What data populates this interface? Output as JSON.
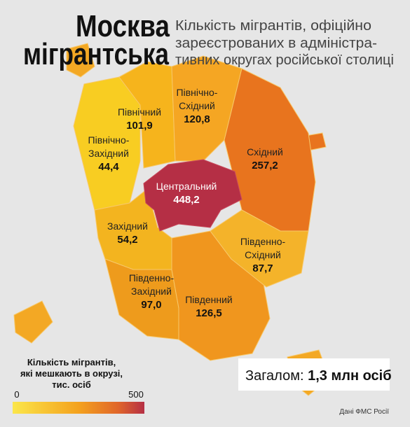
{
  "header": {
    "title": [
      "Москва",
      "мігрантська"
    ],
    "subtitle": [
      "Кількість мігрантів, офіційно",
      "зареєстрованих в адміністра-",
      "тивних округах російської столиці"
    ]
  },
  "districts": [
    {
      "name": [
        "Північний"
      ],
      "value": "101,9"
    },
    {
      "name": [
        "Північно-",
        "Східний"
      ],
      "value": "120,8"
    },
    {
      "name": [
        "Північно-",
        "Західний"
      ],
      "value": "44,4"
    },
    {
      "name": [
        "Східний"
      ],
      "value": "257,2"
    },
    {
      "name": [
        "Центральний"
      ],
      "value": "448,2"
    },
    {
      "name": [
        "Західний"
      ],
      "value": "54,2"
    },
    {
      "name": [
        "Південно-",
        "Східний"
      ],
      "value": "87,7"
    },
    {
      "name": [
        "Південно-",
        "Західний"
      ],
      "value": "97,0"
    },
    {
      "name": [
        "Південний"
      ],
      "value": "126,5"
    }
  ],
  "legend": {
    "title": [
      "Кількість мігрантів,",
      "які мешкають в окрузі,",
      "тис. осіб"
    ],
    "min": "0",
    "max": "500"
  },
  "total": {
    "label": "Загалом:",
    "value": "1,3 млн осіб"
  },
  "source": "Дані ФМС Росії"
}
